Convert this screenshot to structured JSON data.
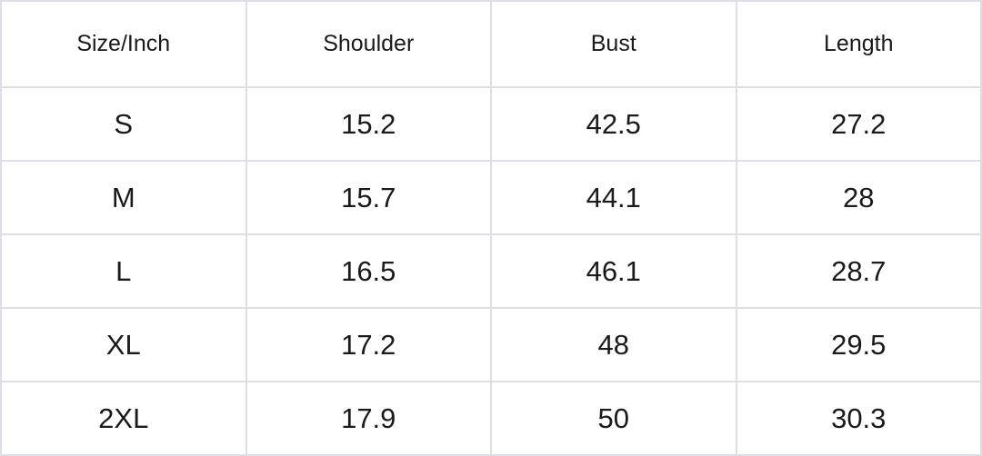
{
  "table": {
    "headers": [
      "Size/Inch",
      "Shoulder",
      "Bust",
      "Length"
    ],
    "rows": [
      [
        "S",
        "15.2",
        "42.5",
        "27.2"
      ],
      [
        "M",
        "15.7",
        "44.1",
        "28"
      ],
      [
        "L",
        "16.5",
        "46.1",
        "28.7"
      ],
      [
        "XL",
        "17.2",
        "48",
        "29.5"
      ],
      [
        "2XL",
        "17.9",
        "50",
        "30.3"
      ]
    ]
  }
}
